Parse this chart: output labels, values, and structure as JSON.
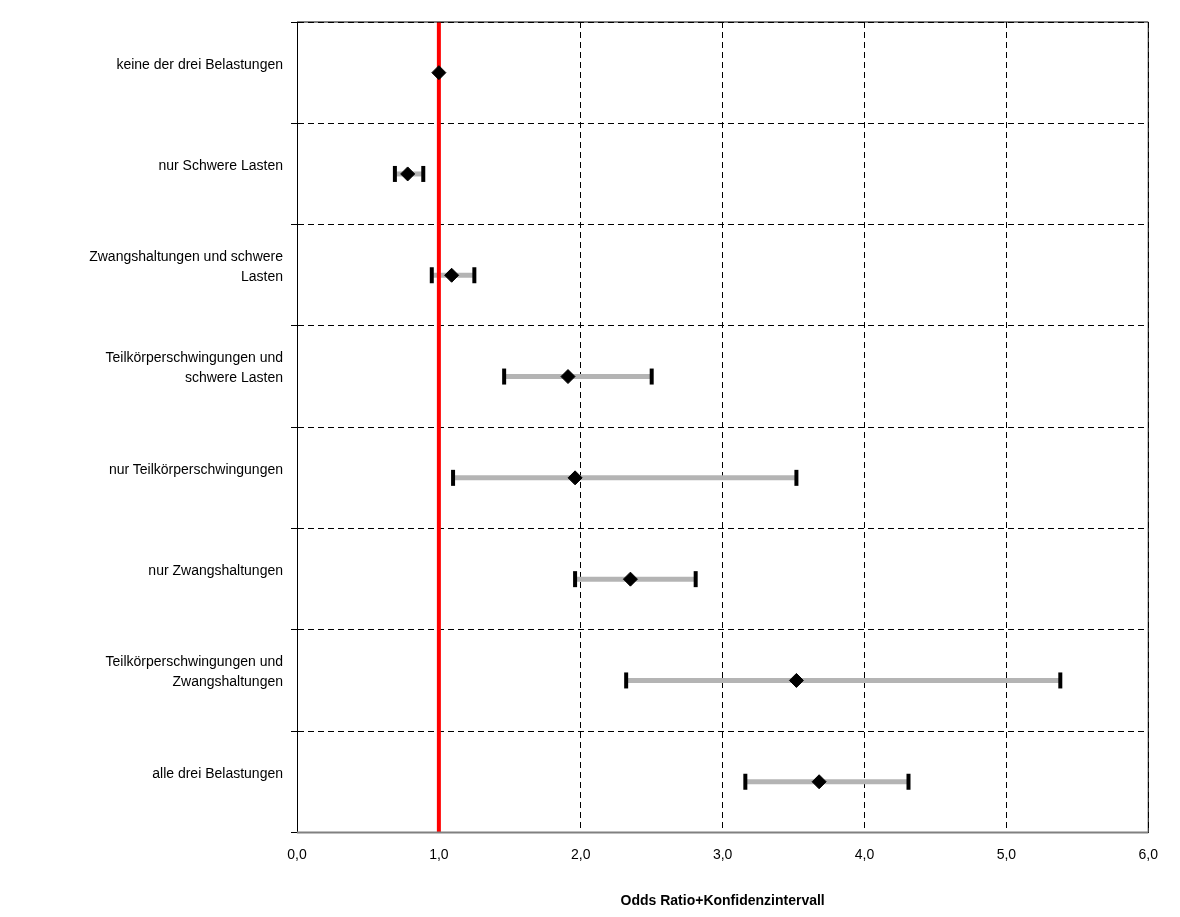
{
  "chart_data": {
    "type": "scatter",
    "orientation": "horizontal",
    "xlabel": "Odds Ratio+Konfidenzintervall",
    "categories": [
      "keine der drei Belastungen",
      "nur Schwere Lasten",
      "Zwangshaltungen und schwere Lasten",
      "Teilkörperschwingungen und schwere Lasten",
      "nur Teilkörperschwingungen",
      "nur Zwangshaltungen",
      "Teilkörperschwingungen und Zwangshaltungen",
      "alle drei Belastungen"
    ],
    "series": [
      {
        "color": "#000000",
        "values": [
          1.0,
          0.78,
          1.09,
          1.91,
          1.96,
          2.35,
          3.52,
          3.68
        ],
        "errors": [
          null,
          [
            0.69,
            0.89
          ],
          [
            0.95,
            1.25
          ],
          [
            1.46,
            2.5
          ],
          [
            1.1,
            3.52
          ],
          [
            1.96,
            2.81
          ],
          [
            2.32,
            5.38
          ],
          [
            3.16,
            4.31
          ]
        ]
      }
    ],
    "marker": "diamond",
    "grid": true,
    "legend": false,
    "xlim": [
      0,
      6
    ],
    "xticks": [
      {
        "value": 0,
        "label": "0,0"
      },
      {
        "value": 1,
        "label": "1,0"
      },
      {
        "value": 2,
        "label": "2,0"
      },
      {
        "value": 3,
        "label": "3,0"
      },
      {
        "value": 4,
        "label": "4,0"
      },
      {
        "value": 5,
        "label": "5,0"
      },
      {
        "value": 6,
        "label": "6,0"
      }
    ],
    "ref_lines": [
      {
        "axis": "x",
        "value": 1,
        "color": "#ff0000"
      }
    ]
  }
}
